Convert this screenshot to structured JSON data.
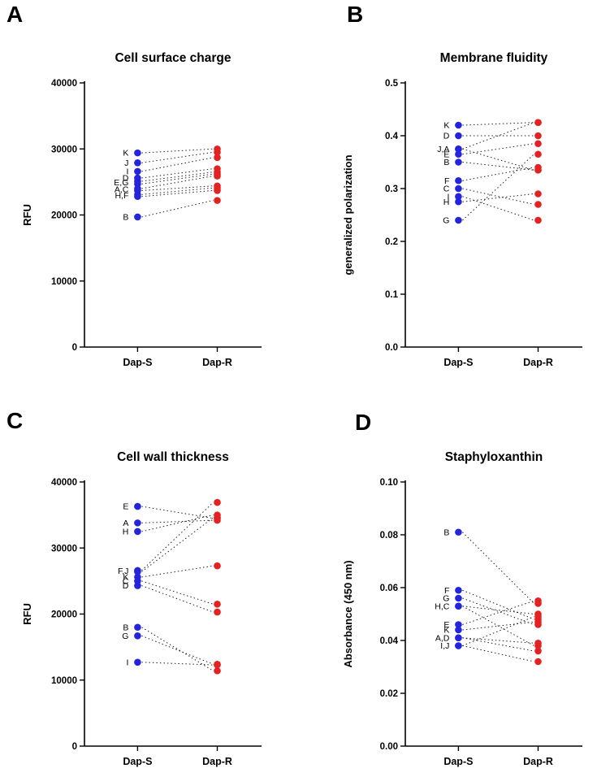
{
  "figure": {
    "panels": [
      {
        "letter": "A"
      },
      {
        "letter": "B"
      },
      {
        "letter": "C"
      },
      {
        "letter": "D"
      }
    ]
  },
  "colors": {
    "dap_s_blue": "#2424dd",
    "dap_r_red": "#e32222",
    "pair_line": "#222222",
    "axis": "#000000"
  },
  "chart_data": [
    {
      "panel": "A",
      "type": "scatter",
      "subtype": "paired-before-after",
      "title": "Cell surface charge",
      "ylabel": "RFU",
      "ylim": [
        0,
        40000
      ],
      "yticks": [
        0,
        10000,
        20000,
        30000,
        40000
      ],
      "ytick_labels": [
        "0",
        "10000",
        "20000",
        "30000",
        "40000"
      ],
      "categories": [
        "Dap-S",
        "Dap-R"
      ],
      "legend": "none",
      "grid": false,
      "pairs": [
        {
          "strain": "K",
          "dap_s": 29400,
          "dap_r": 30000
        },
        {
          "strain": "J",
          "dap_s": 27900,
          "dap_r": 29500
        },
        {
          "strain": "I",
          "dap_s": 26600,
          "dap_r": 28700
        },
        {
          "strain": "D",
          "dap_s": 25600,
          "dap_r": 27000
        },
        {
          "strain": "E",
          "dap_s": 25100,
          "dap_r": 26500
        },
        {
          "strain": "G",
          "dap_s": 24700,
          "dap_r": 26200
        },
        {
          "strain": "A",
          "dap_s": 24000,
          "dap_r": 25900
        },
        {
          "strain": "C",
          "dap_s": 23700,
          "dap_r": 24400
        },
        {
          "strain": "H",
          "dap_s": 23100,
          "dap_r": 24100
        },
        {
          "strain": "F",
          "dap_s": 22800,
          "dap_r": 23700
        },
        {
          "strain": "B",
          "dap_s": 19700,
          "dap_r": 22200
        }
      ],
      "point_labels": [
        {
          "text": "K",
          "y": 29400
        },
        {
          "text": "J",
          "y": 27900
        },
        {
          "text": "I",
          "y": 26600
        },
        {
          "text": "D",
          "y": 25600
        },
        {
          "text": "E,G",
          "y": 24900
        },
        {
          "text": "A,C",
          "y": 23850
        },
        {
          "text": "H,F",
          "y": 22950
        },
        {
          "text": "B",
          "y": 19700
        }
      ]
    },
    {
      "panel": "B",
      "type": "scatter",
      "subtype": "paired-before-after",
      "title": "Membrane fluidity",
      "ylabel": "generalized polarization",
      "ylim": [
        0,
        0.5
      ],
      "yticks": [
        0,
        0.1,
        0.2,
        0.3,
        0.4,
        0.5
      ],
      "ytick_labels": [
        "0.0",
        "0.1",
        "0.2",
        "0.3",
        "0.4",
        "0.5"
      ],
      "categories": [
        "Dap-S",
        "Dap-R"
      ],
      "legend": "none",
      "grid": false,
      "pairs": [
        {
          "strain": "K",
          "dap_s": 0.42,
          "dap_r": 0.425
        },
        {
          "strain": "D",
          "dap_s": 0.4,
          "dap_r": 0.4
        },
        {
          "strain": "J",
          "dap_s": 0.375,
          "dap_r": 0.335
        },
        {
          "strain": "A",
          "dap_s": 0.375,
          "dap_r": 0.425
        },
        {
          "strain": "E",
          "dap_s": 0.365,
          "dap_r": 0.385
        },
        {
          "strain": "B",
          "dap_s": 0.35,
          "dap_r": 0.335
        },
        {
          "strain": "F",
          "dap_s": 0.315,
          "dap_r": 0.34
        },
        {
          "strain": "C",
          "dap_s": 0.3,
          "dap_r": 0.27
        },
        {
          "strain": "I",
          "dap_s": 0.285,
          "dap_r": 0.24
        },
        {
          "strain": "H",
          "dap_s": 0.275,
          "dap_r": 0.29
        },
        {
          "strain": "G",
          "dap_s": 0.24,
          "dap_r": 0.365
        }
      ],
      "point_labels": [
        {
          "text": "K",
          "y": 0.42
        },
        {
          "text": "D",
          "y": 0.4
        },
        {
          "text": "J,A",
          "y": 0.375
        },
        {
          "text": "E",
          "y": 0.365
        },
        {
          "text": "B",
          "y": 0.35
        },
        {
          "text": "F",
          "y": 0.315
        },
        {
          "text": "C",
          "y": 0.3
        },
        {
          "text": "I",
          "y": 0.285
        },
        {
          "text": "H",
          "y": 0.275
        },
        {
          "text": "G",
          "y": 0.24
        }
      ]
    },
    {
      "panel": "C",
      "type": "scatter",
      "subtype": "paired-before-after",
      "title": "Cell wall thickness",
      "ylabel": "RFU",
      "ylim": [
        0,
        40000
      ],
      "yticks": [
        0,
        10000,
        20000,
        30000,
        40000
      ],
      "ytick_labels": [
        "0",
        "10000",
        "20000",
        "30000",
        "40000"
      ],
      "categories": [
        "Dap-S",
        "Dap-R"
      ],
      "legend": "none",
      "grid": false,
      "pairs": [
        {
          "strain": "E",
          "dap_s": 36300,
          "dap_r": 34500
        },
        {
          "strain": "A",
          "dap_s": 33800,
          "dap_r": 34200
        },
        {
          "strain": "H",
          "dap_s": 32500,
          "dap_r": 35000
        },
        {
          "strain": "F",
          "dap_s": 26600,
          "dap_r": 36900
        },
        {
          "strain": "J",
          "dap_s": 26400,
          "dap_r": 34600
        },
        {
          "strain": "K",
          "dap_s": 25600,
          "dap_r": 27300
        },
        {
          "strain": "C",
          "dap_s": 25000,
          "dap_r": 21500
        },
        {
          "strain": "D",
          "dap_s": 24300,
          "dap_r": 20300
        },
        {
          "strain": "B",
          "dap_s": 18000,
          "dap_r": 11400
        },
        {
          "strain": "G",
          "dap_s": 16700,
          "dap_r": 12400
        },
        {
          "strain": "I",
          "dap_s": 12700,
          "dap_r": 12300
        }
      ],
      "point_labels": [
        {
          "text": "E",
          "y": 36300
        },
        {
          "text": "A",
          "y": 33800
        },
        {
          "text": "H",
          "y": 32500
        },
        {
          "text": "F,J",
          "y": 26500
        },
        {
          "text": "K",
          "y": 25600
        },
        {
          "text": "C",
          "y": 25000
        },
        {
          "text": "D",
          "y": 24300
        },
        {
          "text": "B",
          "y": 18000
        },
        {
          "text": "G",
          "y": 16700
        },
        {
          "text": "I",
          "y": 12700
        }
      ]
    },
    {
      "panel": "D",
      "type": "scatter",
      "subtype": "paired-before-after",
      "title": "Staphyloxanthin",
      "ylabel": "Absorbance (450 nm)",
      "ylim": [
        0,
        0.1
      ],
      "yticks": [
        0,
        0.02,
        0.04,
        0.06,
        0.08,
        0.1
      ],
      "ytick_labels": [
        "0.00",
        "0.02",
        "0.04",
        "0.06",
        "0.08",
        "0.10"
      ],
      "categories": [
        "Dap-S",
        "Dap-R"
      ],
      "legend": "none",
      "grid": false,
      "pairs": [
        {
          "strain": "B",
          "dap_s": 0.081,
          "dap_r": 0.054
        },
        {
          "strain": "F",
          "dap_s": 0.059,
          "dap_r": 0.048
        },
        {
          "strain": "G",
          "dap_s": 0.056,
          "dap_r": 0.046
        },
        {
          "strain": "H",
          "dap_s": 0.053,
          "dap_r": 0.05
        },
        {
          "strain": "C",
          "dap_s": 0.053,
          "dap_r": 0.038
        },
        {
          "strain": "E",
          "dap_s": 0.046,
          "dap_r": 0.055
        },
        {
          "strain": "K",
          "dap_s": 0.044,
          "dap_r": 0.047
        },
        {
          "strain": "A",
          "dap_s": 0.041,
          "dap_r": 0.039
        },
        {
          "strain": "D",
          "dap_s": 0.041,
          "dap_r": 0.036
        },
        {
          "strain": "I",
          "dap_s": 0.038,
          "dap_r": 0.032
        },
        {
          "strain": "J",
          "dap_s": 0.038,
          "dap_r": 0.049
        }
      ],
      "point_labels": [
        {
          "text": "B",
          "y": 0.081
        },
        {
          "text": "F",
          "y": 0.059
        },
        {
          "text": "G",
          "y": 0.056
        },
        {
          "text": "H,C",
          "y": 0.053
        },
        {
          "text": "E",
          "y": 0.046
        },
        {
          "text": "K",
          "y": 0.044
        },
        {
          "text": "A,D",
          "y": 0.041
        },
        {
          "text": "I,J",
          "y": 0.038
        }
      ]
    }
  ]
}
